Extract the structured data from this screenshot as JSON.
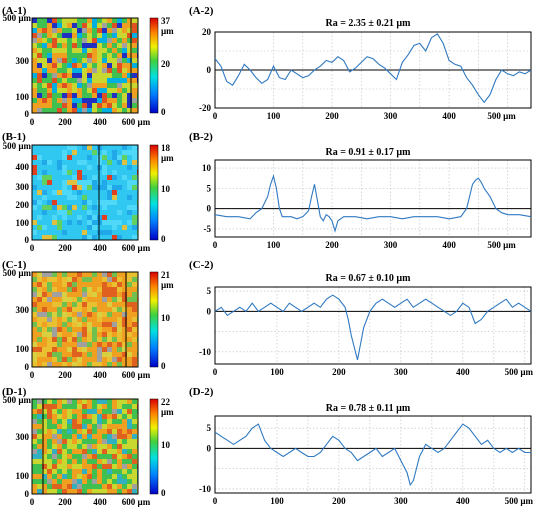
{
  "chart_data": [
    {
      "id": "A-1",
      "type": "heatmap",
      "panel_label": "(A-1)",
      "x_ticks": [
        "0",
        "200",
        "400",
        "600 µm"
      ],
      "y_ticks": [
        "500 µm",
        "300",
        "100",
        "0"
      ],
      "colorbar": {
        "max_label": "37",
        "unit": "µm",
        "mid_label": "20",
        "min_label": "0"
      },
      "palette": "mixed"
    },
    {
      "id": "A-2",
      "type": "line",
      "panel_label": "(A-2)",
      "title": "Ra = 2.35 ± 0.21 µm",
      "x_ticks": [
        "0",
        "100",
        "200",
        "300",
        "400",
        "500 µm"
      ],
      "y_ticks": [
        "20",
        "0",
        "-20"
      ],
      "xlim": [
        0,
        540
      ],
      "ylim": [
        -20,
        20
      ],
      "x": [
        0,
        10,
        20,
        30,
        40,
        50,
        60,
        70,
        80,
        90,
        100,
        110,
        120,
        130,
        140,
        150,
        160,
        170,
        180,
        190,
        200,
        210,
        220,
        230,
        240,
        250,
        260,
        270,
        280,
        290,
        300,
        310,
        320,
        330,
        340,
        350,
        360,
        370,
        380,
        390,
        400,
        410,
        420,
        430,
        440,
        450,
        460,
        470,
        480,
        490,
        500,
        510,
        520,
        530,
        540
      ],
      "y": [
        6,
        2,
        -6,
        -8,
        -3,
        3,
        0,
        -4,
        -7,
        -5,
        2,
        -4,
        -5,
        0,
        -2,
        -4,
        -3,
        0,
        2,
        5,
        4,
        7,
        5,
        -1,
        1,
        4,
        7,
        6,
        3,
        1,
        -2,
        -5,
        4,
        8,
        13,
        14,
        10,
        17,
        19,
        14,
        5,
        3,
        2,
        -4,
        -8,
        -13,
        -17,
        -13,
        -5,
        0,
        -2,
        -3,
        -1,
        -2,
        0
      ],
      "line_color": "#2f79c2"
    },
    {
      "id": "B-1",
      "type": "heatmap",
      "panel_label": "(B-1)",
      "x_ticks": [
        "0",
        "200",
        "400",
        "600 µm"
      ],
      "y_ticks": [
        "500 µm",
        "400",
        "300",
        "200",
        "100",
        "0"
      ],
      "colorbar": {
        "max_label": "18",
        "unit": "µm",
        "mid_label": "10",
        "min_label": "0"
      },
      "palette": "cyan"
    },
    {
      "id": "B-2",
      "type": "line",
      "panel_label": "(B-2)",
      "title": "Ra = 0.91 ± 0.17 µm",
      "x_ticks": [
        "0",
        "100",
        "200",
        "300",
        "400",
        "500 µm"
      ],
      "y_ticks": [
        "10",
        "5",
        "0",
        "-5"
      ],
      "xlim": [
        0,
        540
      ],
      "ylim": [
        -7,
        12
      ],
      "x": [
        0,
        20,
        40,
        60,
        70,
        80,
        90,
        95,
        100,
        105,
        110,
        115,
        120,
        130,
        140,
        150,
        160,
        165,
        170,
        175,
        180,
        185,
        190,
        195,
        200,
        205,
        210,
        220,
        240,
        260,
        280,
        300,
        320,
        340,
        360,
        380,
        400,
        420,
        430,
        435,
        440,
        445,
        450,
        455,
        460,
        470,
        480,
        490,
        500,
        520,
        540
      ],
      "y": [
        -1.5,
        -2,
        -2,
        -2.5,
        -1,
        0,
        3,
        6,
        8,
        5,
        0,
        -2,
        -2,
        -2,
        -2.5,
        -2,
        -0.5,
        3,
        6,
        2,
        -2,
        -3,
        -1.5,
        -2,
        -3,
        -5.5,
        -3,
        -2,
        -2,
        -2.5,
        -2,
        -2,
        -2.5,
        -2,
        -2,
        -2,
        -2.5,
        -2,
        0,
        3,
        6,
        7,
        7.5,
        6.5,
        5,
        3,
        0,
        -1,
        -1.5,
        -1.5,
        -2
      ],
      "line_color": "#2f79c2"
    },
    {
      "id": "C-1",
      "type": "heatmap",
      "panel_label": "(C-1)",
      "x_ticks": [
        "0",
        "200",
        "400",
        "600 µm"
      ],
      "y_ticks": [
        "500 µm",
        "300",
        "100",
        "0"
      ],
      "colorbar": {
        "max_label": "21",
        "unit": "µm",
        "mid_label": "10",
        "min_label": "0"
      },
      "palette": "orange"
    },
    {
      "id": "C-2",
      "type": "line",
      "panel_label": "(C-2)",
      "title": "Ra = 0.67 ± 0.10 µm",
      "x_ticks": [
        "0",
        "100",
        "200",
        "300",
        "400",
        "500 µm"
      ],
      "y_ticks": [
        "5",
        "0",
        "-10"
      ],
      "xlim": [
        0,
        510
      ],
      "ylim": [
        -13,
        6
      ],
      "x": [
        0,
        10,
        20,
        30,
        40,
        50,
        60,
        70,
        80,
        90,
        100,
        110,
        120,
        130,
        140,
        150,
        160,
        170,
        180,
        190,
        200,
        210,
        215,
        220,
        225,
        230,
        235,
        240,
        250,
        260,
        270,
        280,
        290,
        300,
        310,
        320,
        330,
        340,
        350,
        360,
        370,
        380,
        390,
        400,
        410,
        420,
        430,
        440,
        450,
        460,
        470,
        480,
        490,
        500,
        510
      ],
      "y": [
        0,
        1,
        -1,
        0,
        1,
        0,
        2,
        0,
        1,
        2,
        1,
        0,
        2,
        1,
        0,
        1,
        2,
        1,
        3,
        4,
        3,
        1,
        -2,
        -6,
        -9,
        -12,
        -8,
        -4,
        0,
        2,
        3,
        2,
        1,
        2,
        3,
        1,
        2,
        3,
        2,
        1,
        0,
        -1,
        0,
        2,
        1,
        -3,
        -2,
        0,
        1,
        2,
        3,
        1,
        2,
        1,
        0
      ],
      "line_color": "#2f79c2"
    },
    {
      "id": "D-1",
      "type": "heatmap",
      "panel_label": "(D-1)",
      "x_ticks": [
        "0",
        "200",
        "400",
        "600 µm"
      ],
      "y_ticks": [
        "500 µm",
        "300",
        "100",
        "0"
      ],
      "colorbar": {
        "max_label": "22",
        "unit": "µm",
        "mid_label": "10",
        "min_label": "0"
      },
      "palette": "green"
    },
    {
      "id": "D-2",
      "type": "line",
      "panel_label": "(D-2)",
      "title": "Ra = 0.78 ± 0.11 µm",
      "x_ticks": [
        "0",
        "100",
        "200",
        "300",
        "400",
        "500 µm"
      ],
      "y_ticks": [
        "5",
        "0",
        "-10"
      ],
      "xlim": [
        0,
        510
      ],
      "ylim": [
        -11,
        8
      ],
      "x": [
        0,
        10,
        20,
        30,
        40,
        50,
        60,
        70,
        80,
        90,
        100,
        110,
        120,
        130,
        140,
        150,
        160,
        170,
        180,
        190,
        200,
        210,
        220,
        230,
        240,
        250,
        260,
        270,
        280,
        290,
        300,
        310,
        315,
        320,
        325,
        330,
        340,
        350,
        360,
        370,
        380,
        390,
        400,
        410,
        420,
        430,
        440,
        450,
        460,
        470,
        480,
        490,
        500,
        510
      ],
      "y": [
        4,
        3,
        2,
        1,
        2,
        3,
        5,
        6,
        2,
        0,
        -1,
        -2,
        -1,
        0,
        -1,
        -2,
        -2,
        -1,
        1,
        3,
        2,
        0,
        -1,
        -3,
        -2,
        -1,
        0,
        -2,
        -1,
        0,
        -3,
        -6,
        -9,
        -8,
        -5,
        -2,
        1,
        0,
        -1,
        0,
        2,
        4,
        6,
        5,
        3,
        1,
        2,
        0,
        -1,
        0,
        -1,
        0,
        -1,
        -1
      ],
      "line_color": "#2f79c2"
    }
  ]
}
